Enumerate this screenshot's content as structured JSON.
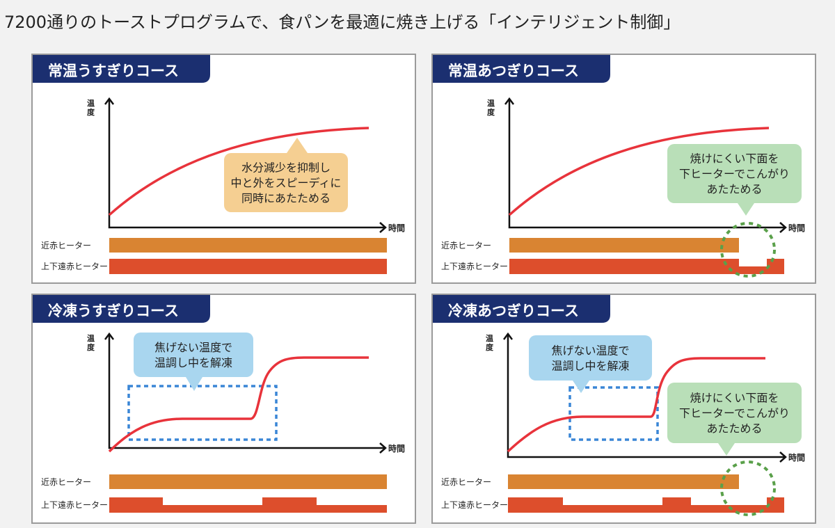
{
  "title": "7200通りのトーストプログラムで、食パンを最適に焼き上げる「インテリジェント制御」",
  "colors": {
    "banner": "#1b2f70",
    "curve": "#e8333b",
    "near_heater": "#d98432",
    "far_heater": "#dd4e2c",
    "orange_balloon": "#f5cf92",
    "blue_balloon": "#a9d6ef",
    "green_balloon": "#b9dfb8",
    "blue_dash": "#3a86d6",
    "green_dash": "#5aa04a"
  },
  "axis": {
    "y_label": "温度",
    "x_label": "時間"
  },
  "heaters": {
    "near": "近赤ヒーター",
    "far": "上下遠赤ヒーター"
  },
  "panels": [
    {
      "title": "常温うすぎりコース",
      "callouts": [
        {
          "style": "orange",
          "lines": [
            "水分減少を抑制し",
            "中と外をスピーディに",
            "同時にあたためる"
          ]
        }
      ]
    },
    {
      "title": "常温あつぎりコース",
      "callouts": [
        {
          "style": "green",
          "lines": [
            "焼けにくい下面を",
            "下ヒーターでこんがり",
            "あたためる"
          ]
        }
      ]
    },
    {
      "title": "冷凍うすぎりコース",
      "callouts": [
        {
          "style": "blue",
          "lines": [
            "焦げない温度で",
            "温調し中を解凍"
          ]
        }
      ]
    },
    {
      "title": "冷凍あつぎりコース",
      "callouts": [
        {
          "style": "blue",
          "lines": [
            "焦げない温度で",
            "温調し中を解凍"
          ]
        },
        {
          "style": "green",
          "lines": [
            "焼けにくい下面を",
            "下ヒーターでこんがり",
            "あたためる"
          ]
        }
      ]
    }
  ]
}
